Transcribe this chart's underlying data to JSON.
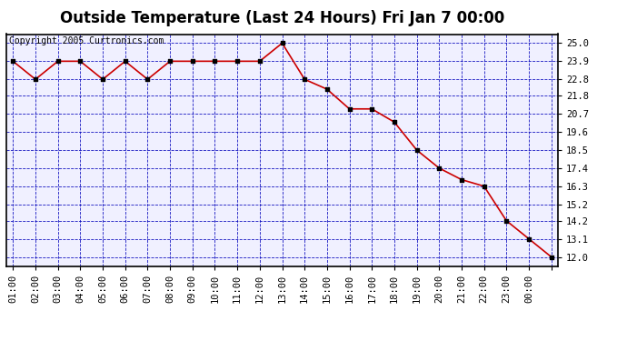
{
  "title": "Outside Temperature (Last 24 Hours) Fri Jan 7 00:00",
  "copyright": "Copyright 2005 Curtronics.com",
  "x_labels": [
    "01:00",
    "02:00",
    "03:00",
    "04:00",
    "05:00",
    "06:00",
    "07:00",
    "08:00",
    "09:00",
    "10:00",
    "11:00",
    "12:00",
    "13:00",
    "14:00",
    "15:00",
    "16:00",
    "17:00",
    "18:00",
    "19:00",
    "20:00",
    "21:00",
    "22:00",
    "23:00",
    "00:00"
  ],
  "y_values": [
    23.9,
    22.8,
    23.9,
    23.9,
    22.8,
    23.9,
    22.8,
    23.9,
    23.9,
    23.9,
    23.9,
    23.9,
    25.0,
    22.8,
    22.2,
    21.0,
    21.0,
    20.2,
    18.5,
    17.4,
    16.7,
    16.3,
    14.2,
    13.1,
    12.0
  ],
  "x_indices": [
    0,
    1,
    2,
    3,
    4,
    5,
    6,
    7,
    8,
    9,
    10,
    11,
    12,
    13,
    14,
    15,
    16,
    17,
    18,
    19,
    20,
    21,
    22,
    23,
    24
  ],
  "y_ticks": [
    12.0,
    13.1,
    14.2,
    15.2,
    16.3,
    17.4,
    18.5,
    19.6,
    20.7,
    21.8,
    22.8,
    23.9,
    25.0
  ],
  "ylim": [
    11.45,
    25.55
  ],
  "line_color": "#cc0000",
  "marker_color": "#000000",
  "bg_color": "#ffffff",
  "plot_bg_color": "#f0f0ff",
  "grid_color": "#0000bb",
  "title_fontsize": 12,
  "axis_fontsize": 7.5,
  "copyright_fontsize": 7
}
